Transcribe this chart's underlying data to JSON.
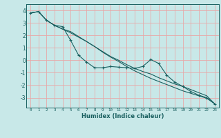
{
  "title": "",
  "xlabel": "Humidex (Indice chaleur)",
  "ylabel": "",
  "background_color": "#c8e8e8",
  "grid_color": "#e8a8a8",
  "line_color": "#1a6060",
  "xlim": [
    -0.5,
    23.5
  ],
  "ylim": [
    -3.8,
    4.5
  ],
  "yticks": [
    -3,
    -2,
    -1,
    0,
    1,
    2,
    3,
    4
  ],
  "xticks": [
    0,
    1,
    2,
    3,
    4,
    5,
    6,
    7,
    8,
    9,
    10,
    11,
    12,
    13,
    14,
    15,
    16,
    17,
    18,
    19,
    20,
    21,
    22,
    23
  ],
  "series1_x": [
    0,
    1,
    2,
    3,
    4,
    5,
    6,
    7,
    8,
    9,
    10,
    11,
    12,
    13,
    14,
    15,
    16,
    17,
    18,
    19,
    20,
    21,
    22,
    23
  ],
  "series1_y": [
    3.8,
    3.9,
    3.2,
    2.8,
    2.7,
    1.6,
    0.4,
    -0.15,
    -0.6,
    -0.6,
    -0.5,
    -0.55,
    -0.6,
    -0.65,
    -0.5,
    0.05,
    -0.25,
    -1.2,
    -1.75,
    -2.1,
    -2.5,
    -2.8,
    -3.0,
    -3.5
  ],
  "series2_x": [
    0,
    1,
    2,
    3,
    4,
    5,
    6,
    7,
    8,
    9,
    10,
    11,
    12,
    13,
    14,
    15,
    16,
    17,
    18,
    19,
    20,
    21,
    22,
    23
  ],
  "series2_y": [
    3.8,
    3.9,
    3.2,
    2.8,
    2.5,
    2.3,
    1.9,
    1.5,
    1.1,
    0.7,
    0.3,
    0.0,
    -0.35,
    -0.65,
    -0.9,
    -1.1,
    -1.4,
    -1.65,
    -1.9,
    -2.1,
    -2.35,
    -2.6,
    -2.85,
    -3.5
  ],
  "series3_x": [
    0,
    1,
    2,
    3,
    4,
    5,
    6,
    7,
    8,
    9,
    10,
    11,
    12,
    13,
    14,
    15,
    16,
    17,
    18,
    19,
    20,
    21,
    22,
    23
  ],
  "series3_y": [
    3.8,
    3.9,
    3.2,
    2.8,
    2.5,
    2.2,
    1.85,
    1.5,
    1.1,
    0.65,
    0.25,
    -0.1,
    -0.5,
    -0.85,
    -1.15,
    -1.45,
    -1.7,
    -1.95,
    -2.2,
    -2.45,
    -2.65,
    -2.85,
    -3.05,
    -3.5
  ]
}
